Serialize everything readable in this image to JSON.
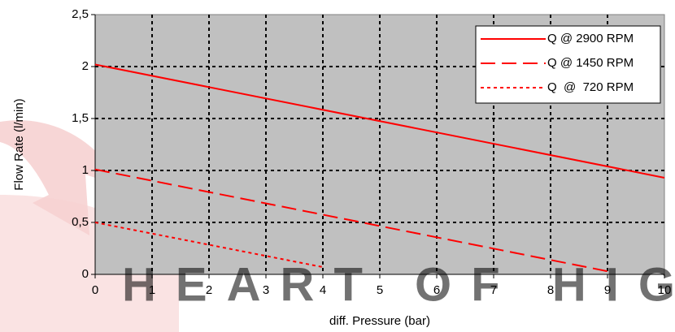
{
  "chart_data": {
    "type": "line",
    "xlabel": "diff. Pressure (bar)",
    "ylabel": "Flow Rate (l/min)",
    "xlim": [
      0,
      10
    ],
    "xticks": [
      0,
      1,
      2,
      3,
      4,
      5,
      6,
      7,
      8,
      9,
      10
    ],
    "ylim": [
      0,
      2.5
    ],
    "yticks": [
      0,
      {
        "value": 0.5,
        "label": "0,5"
      },
      1,
      {
        "value": 1.5,
        "label": "1,5"
      },
      2,
      {
        "value": 2.5,
        "label": "2,5"
      }
    ],
    "grid": true,
    "legend": "top-right",
    "series": [
      {
        "name": "Q @ 2900 RPM",
        "color": "#ff0000",
        "style": "solid",
        "x": [
          0,
          10
        ],
        "values": [
          2.02,
          0.93
        ]
      },
      {
        "name": "Q @ 1450 RPM",
        "color": "#ff0000",
        "style": "dashed",
        "x": [
          0,
          9
        ],
        "values": [
          1.01,
          0.03
        ]
      },
      {
        "name": "Q  @  720 RPM",
        "color": "#ff0000",
        "style": "dotted",
        "x": [
          0,
          4
        ],
        "values": [
          0.5,
          0.07
        ]
      }
    ],
    "watermark": "HEART OF HIG"
  }
}
